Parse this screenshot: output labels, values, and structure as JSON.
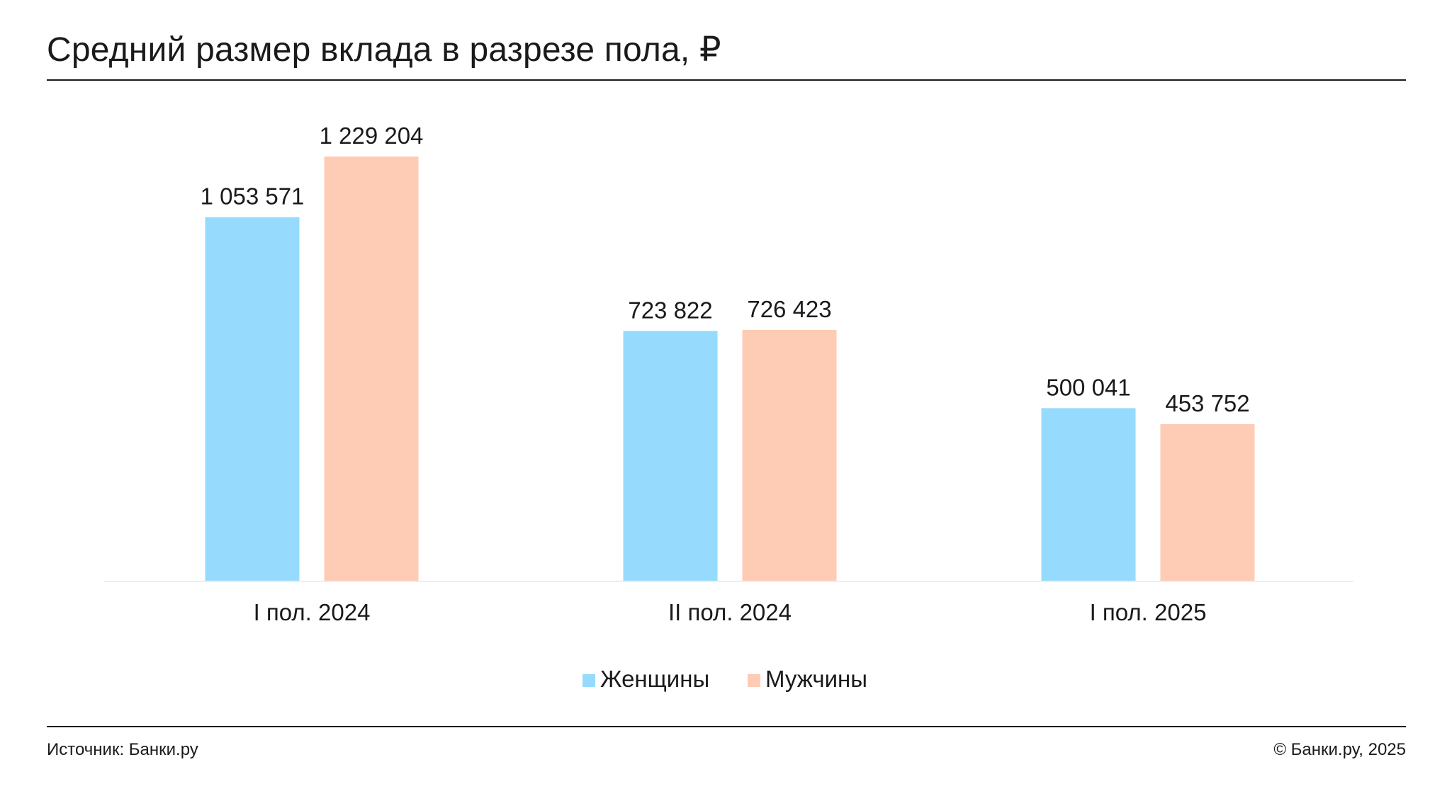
{
  "title": "Средний размер вклада в разрезе пола, ₽",
  "footer": {
    "source": "Источник: Банки.ру",
    "copyright": "© Банки.ру, 2025"
  },
  "colors": {
    "women": "#96dbfe",
    "men": "#fecbb4",
    "text": "#1a1a1a",
    "baseline": "#eeeeee"
  },
  "chart_data": {
    "type": "bar",
    "title": "Средний размер вклада в разрезе пола, ₽",
    "categories": [
      "I пол. 2024",
      "II пол. 2024",
      "I пол. 2025"
    ],
    "series": [
      {
        "name": "Женщины",
        "values": [
          1053571,
          723822,
          500041
        ],
        "labels": [
          "1 053 571",
          "723 822",
          "500 041"
        ]
      },
      {
        "name": "Мужчины",
        "values": [
          1229204,
          726423,
          453752
        ],
        "labels": [
          "1 229 204",
          "726 423",
          "453 752"
        ]
      }
    ],
    "xlabel": "",
    "ylabel": "",
    "ylim": [
      0,
      1229204
    ],
    "grid": false,
    "legend": "bottom-center"
  }
}
